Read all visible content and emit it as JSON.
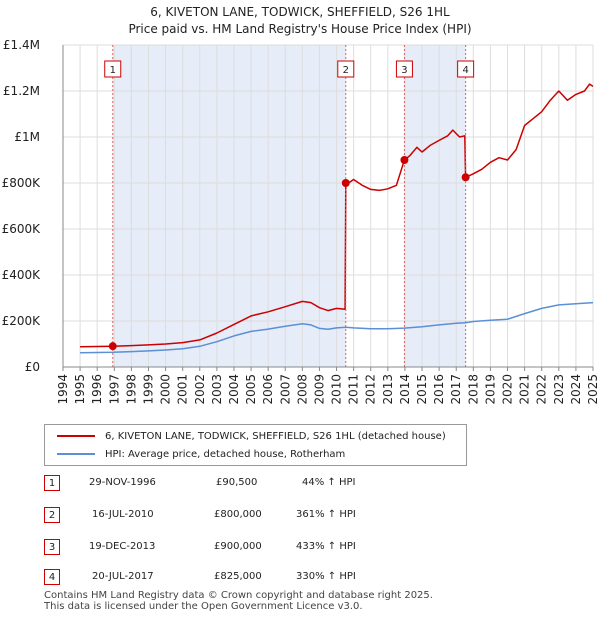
{
  "chart_data": {
    "type": "line",
    "title": "6, KIVETON LANE, TODWICK, SHEFFIELD, S26 1HL",
    "subtitle": "Price paid vs. HM Land Registry's House Price Index (HPI)",
    "xlim": [
      1994,
      2025
    ],
    "ylim": [
      0,
      1400000
    ],
    "x_ticks": [
      "1994",
      "1995",
      "1996",
      "1997",
      "1998",
      "1999",
      "2000",
      "2001",
      "2002",
      "2003",
      "2004",
      "2005",
      "2006",
      "2007",
      "2008",
      "2009",
      "2010",
      "2011",
      "2012",
      "2013",
      "2014",
      "2015",
      "2016",
      "2017",
      "2018",
      "2019",
      "2020",
      "2021",
      "2022",
      "2023",
      "2024",
      "2025"
    ],
    "y_ticks": [
      {
        "value": 0,
        "label": "£0"
      },
      {
        "value": 200000,
        "label": "£200K"
      },
      {
        "value": 400000,
        "label": "£400K"
      },
      {
        "value": 600000,
        "label": "£600K"
      },
      {
        "value": 800000,
        "label": "£800K"
      },
      {
        "value": 1000000,
        "label": "£1M"
      },
      {
        "value": 1200000,
        "label": "£1.2M"
      },
      {
        "value": 1400000,
        "label": "£1.4M"
      }
    ],
    "grid": true,
    "shaded_ranges": [
      [
        1996.91,
        2010.54
      ],
      [
        2013.97,
        2017.55
      ]
    ],
    "series": [
      {
        "name": "6, KIVETON LANE, TODWICK, SHEFFIELD, S26 1HL (detached house)",
        "color": "#cc0000",
        "points": [
          [
            1995.0,
            88000
          ],
          [
            1996.0,
            89000
          ],
          [
            1996.91,
            90500
          ],
          [
            1998.0,
            93000
          ],
          [
            1999.0,
            96000
          ],
          [
            2000.0,
            100000
          ],
          [
            2001.0,
            106000
          ],
          [
            2002.0,
            118000
          ],
          [
            2003.0,
            148000
          ],
          [
            2004.0,
            185000
          ],
          [
            2005.0,
            222000
          ],
          [
            2006.0,
            240000
          ],
          [
            2007.0,
            262000
          ],
          [
            2008.0,
            285000
          ],
          [
            2008.5,
            280000
          ],
          [
            2009.0,
            258000
          ],
          [
            2009.5,
            245000
          ],
          [
            2010.0,
            255000
          ],
          [
            2010.5,
            251000
          ],
          [
            2010.54,
            800000
          ],
          [
            2010.8,
            805000
          ],
          [
            2011.0,
            815000
          ],
          [
            2011.5,
            790000
          ],
          [
            2012.0,
            772000
          ],
          [
            2012.5,
            768000
          ],
          [
            2013.0,
            775000
          ],
          [
            2013.5,
            790000
          ],
          [
            2013.97,
            900000
          ],
          [
            2014.3,
            920000
          ],
          [
            2014.7,
            955000
          ],
          [
            2015.0,
            935000
          ],
          [
            2015.5,
            965000
          ],
          [
            2016.0,
            985000
          ],
          [
            2016.5,
            1005000
          ],
          [
            2016.8,
            1030000
          ],
          [
            2017.2,
            1000000
          ],
          [
            2017.5,
            1005000
          ],
          [
            2017.55,
            825000
          ],
          [
            2018.0,
            840000
          ],
          [
            2018.5,
            860000
          ],
          [
            2019.0,
            890000
          ],
          [
            2019.5,
            910000
          ],
          [
            2020.0,
            900000
          ],
          [
            2020.5,
            945000
          ],
          [
            2021.0,
            1050000
          ],
          [
            2021.5,
            1080000
          ],
          [
            2022.0,
            1110000
          ],
          [
            2022.5,
            1160000
          ],
          [
            2023.0,
            1200000
          ],
          [
            2023.5,
            1160000
          ],
          [
            2024.0,
            1185000
          ],
          [
            2024.5,
            1200000
          ],
          [
            2024.8,
            1230000
          ],
          [
            2025.0,
            1220000
          ]
        ]
      },
      {
        "name": "HPI: Average price, detached house, Rotherham",
        "color": "#5b8fd6",
        "points": [
          [
            1995.0,
            62000
          ],
          [
            1996.0,
            63000
          ],
          [
            1996.91,
            64000
          ],
          [
            1998.0,
            67000
          ],
          [
            1999.0,
            70000
          ],
          [
            2000.0,
            74000
          ],
          [
            2001.0,
            79000
          ],
          [
            2002.0,
            90000
          ],
          [
            2003.0,
            110000
          ],
          [
            2004.0,
            135000
          ],
          [
            2005.0,
            155000
          ],
          [
            2006.0,
            165000
          ],
          [
            2007.0,
            177000
          ],
          [
            2008.0,
            188000
          ],
          [
            2008.5,
            183000
          ],
          [
            2009.0,
            168000
          ],
          [
            2009.5,
            164000
          ],
          [
            2010.0,
            170000
          ],
          [
            2010.54,
            173000
          ],
          [
            2011.0,
            170000
          ],
          [
            2012.0,
            166000
          ],
          [
            2013.0,
            166000
          ],
          [
            2013.97,
            169000
          ],
          [
            2015.0,
            175000
          ],
          [
            2016.0,
            183000
          ],
          [
            2017.0,
            190000
          ],
          [
            2017.55,
            192000
          ],
          [
            2018.0,
            198000
          ],
          [
            2019.0,
            203000
          ],
          [
            2020.0,
            208000
          ],
          [
            2021.0,
            232000
          ],
          [
            2022.0,
            255000
          ],
          [
            2023.0,
            270000
          ],
          [
            2024.0,
            275000
          ],
          [
            2025.0,
            280000
          ]
        ]
      }
    ],
    "sales": [
      {
        "label": "1",
        "x": 1996.91,
        "price": 90500
      },
      {
        "label": "2",
        "x": 2010.54,
        "price": 800000
      },
      {
        "label": "3",
        "x": 2013.97,
        "price": 900000
      },
      {
        "label": "4",
        "x": 2017.55,
        "price": 825000
      }
    ]
  },
  "legend": {
    "property": "6, KIVETON LANE, TODWICK, SHEFFIELD, S26 1HL (detached house)",
    "hpi": "HPI: Average price, detached house, Rotherham",
    "property_color": "#cc0000",
    "hpi_color": "#5b8fd6"
  },
  "transactions": [
    {
      "num": "1",
      "date": "29-NOV-1996",
      "price": "£90,500",
      "change": "44% ↑ HPI"
    },
    {
      "num": "2",
      "date": "16-JUL-2010",
      "price": "£800,000",
      "change": "361% ↑ HPI"
    },
    {
      "num": "3",
      "date": "19-DEC-2013",
      "price": "£900,000",
      "change": "433% ↑ HPI"
    },
    {
      "num": "4",
      "date": "20-JUL-2017",
      "price": "£825,000",
      "change": "330% ↑ HPI"
    }
  ],
  "footer": {
    "line1": "Contains HM Land Registry data © Crown copyright and database right 2025.",
    "line2": "This data is licensed under the Open Government Licence v3.0."
  }
}
